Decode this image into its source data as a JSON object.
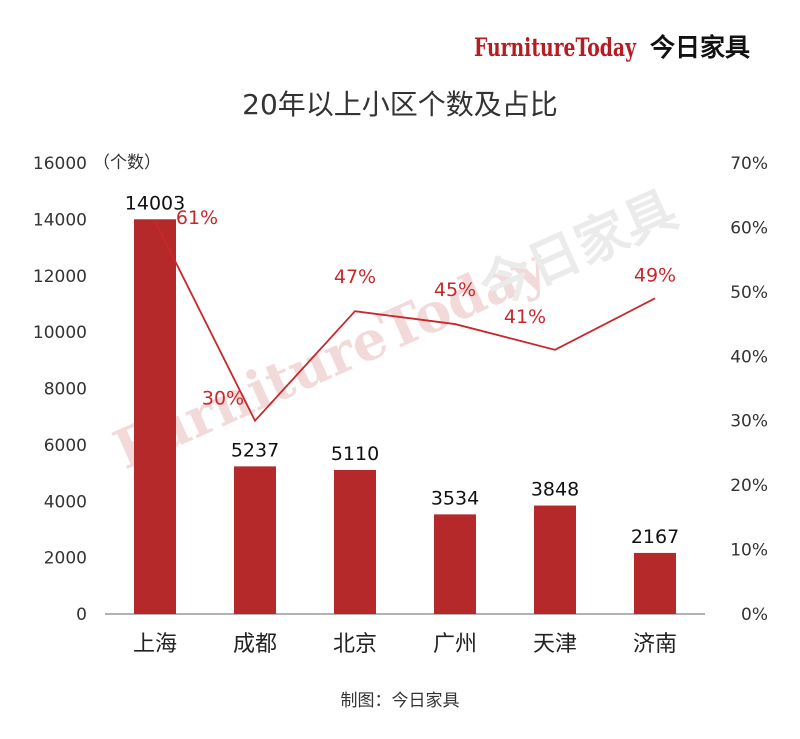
{
  "brand": {
    "latin": "FurnitureToday",
    "cn": "今日家具"
  },
  "watermark": {
    "latin": "FurnitureToday",
    "cn": "今日家具"
  },
  "colors": {
    "bar": "#b5292a",
    "line": "#c8282b",
    "pct_text": "#c8282b",
    "brand": "#b31e23"
  },
  "chart_data": {
    "type": "bar",
    "title": "20年以上小区个数及占比",
    "unit_label": "（个数）",
    "categories": [
      "上海",
      "成都",
      "北京",
      "广州",
      "天津",
      "济南"
    ],
    "series": [
      {
        "type": "bar",
        "axis": "left",
        "values": [
          14003,
          5237,
          5110,
          3534,
          3848,
          2167
        ]
      },
      {
        "type": "line",
        "axis": "right",
        "values": [
          61,
          30,
          47,
          45,
          41,
          49
        ],
        "labels": [
          "61%",
          "30%",
          "47%",
          "45%",
          "41%",
          "49%"
        ]
      }
    ],
    "y_left": {
      "range": [
        0,
        16000
      ],
      "ticks": [
        "0",
        "2000",
        "4000",
        "6000",
        "8000",
        "10000",
        "12000",
        "14000",
        "16000"
      ]
    },
    "y_right": {
      "range": [
        0,
        70
      ],
      "ticks": [
        "0%",
        "10%",
        "20%",
        "30%",
        "40%",
        "50%",
        "60%",
        "70%"
      ]
    },
    "grid": false,
    "legend": "none"
  },
  "source": "制图：今日家具"
}
